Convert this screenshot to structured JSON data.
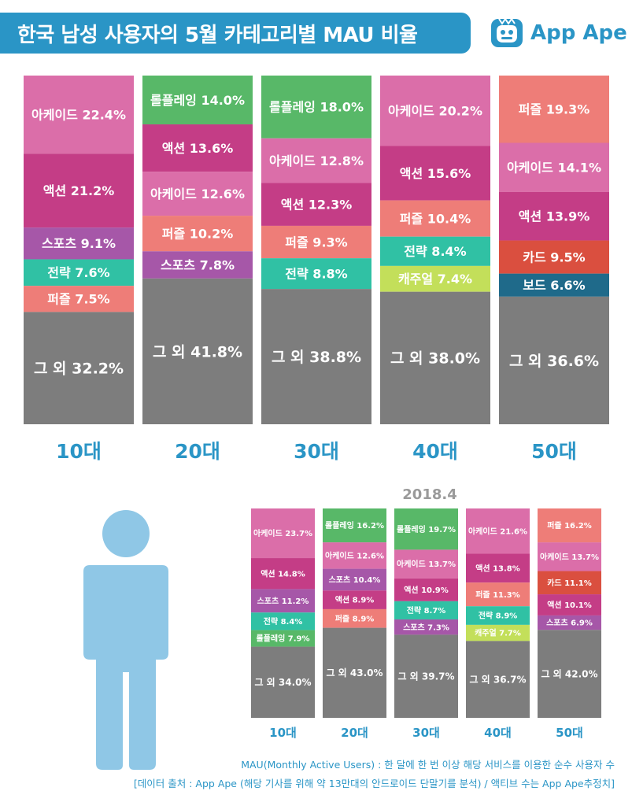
{
  "title": "한국 남성 사용자의 5월 카테고리별 MAU 비율",
  "logo_text": "App Ape",
  "colors": {
    "아케이드": "#db6ea9",
    "액션": "#c43d86",
    "스포츠": "#a657a8",
    "전략": "#30c1a4",
    "퍼즐": "#ee7d78",
    "롤플레잉": "#58b868",
    "캐주얼": "#c3df5a",
    "카드": "#da4f3f",
    "보드": "#1f6a8a",
    "그 외": "#7d7d7d",
    "accent": "#2a95c6",
    "figure": "#8fc7e6"
  },
  "chart_data": [
    {
      "type": "bar",
      "stacked": true,
      "normalized": true,
      "title": "",
      "categories": [
        "10대",
        "20대",
        "30대",
        "40대",
        "50대"
      ],
      "stacks": [
        [
          {
            "name": "아케이드",
            "value": 22.4
          },
          {
            "name": "액션",
            "value": 21.2
          },
          {
            "name": "스포츠",
            "value": 9.1
          },
          {
            "name": "전략",
            "value": 7.6
          },
          {
            "name": "퍼즐",
            "value": 7.5
          },
          {
            "name": "그 외",
            "value": 32.2
          }
        ],
        [
          {
            "name": "롤플레잉",
            "value": 14.0
          },
          {
            "name": "액션",
            "value": 13.6
          },
          {
            "name": "아케이드",
            "value": 12.6
          },
          {
            "name": "퍼즐",
            "value": 10.2
          },
          {
            "name": "스포츠",
            "value": 7.8
          },
          {
            "name": "그 외",
            "value": 41.8
          }
        ],
        [
          {
            "name": "롤플레잉",
            "value": 18.0
          },
          {
            "name": "아케이드",
            "value": 12.8
          },
          {
            "name": "액션",
            "value": 12.3
          },
          {
            "name": "퍼즐",
            "value": 9.3
          },
          {
            "name": "전략",
            "value": 8.8
          },
          {
            "name": "그 외",
            "value": 38.8
          }
        ],
        [
          {
            "name": "아케이드",
            "value": 20.2
          },
          {
            "name": "액션",
            "value": 15.6
          },
          {
            "name": "퍼즐",
            "value": 10.4
          },
          {
            "name": "전략",
            "value": 8.4
          },
          {
            "name": "캐주얼",
            "value": 7.4
          },
          {
            "name": "그 외",
            "value": 38.0
          }
        ],
        [
          {
            "name": "퍼즐",
            "value": 19.3
          },
          {
            "name": "아케이드",
            "value": 14.1
          },
          {
            "name": "액션",
            "value": 13.9
          },
          {
            "name": "카드",
            "value": 9.5
          },
          {
            "name": "보드",
            "value": 6.6
          },
          {
            "name": "그 외",
            "value": 36.6
          }
        ]
      ]
    },
    {
      "type": "bar",
      "stacked": true,
      "normalized": true,
      "title": "2018.4",
      "categories": [
        "10대",
        "20대",
        "30대",
        "40대",
        "50대"
      ],
      "stacks": [
        [
          {
            "name": "아케이드",
            "value": 23.7
          },
          {
            "name": "액션",
            "value": 14.8
          },
          {
            "name": "스포츠",
            "value": 11.2
          },
          {
            "name": "전략",
            "value": 8.4
          },
          {
            "name": "롤플레잉",
            "value": 7.9
          },
          {
            "name": "그 외",
            "value": 34.0
          }
        ],
        [
          {
            "name": "롤플레잉",
            "value": 16.2
          },
          {
            "name": "아케이드",
            "value": 12.6
          },
          {
            "name": "스포츠",
            "value": 10.4
          },
          {
            "name": "액션",
            "value": 8.9
          },
          {
            "name": "퍼즐",
            "value": 8.9
          },
          {
            "name": "그 외",
            "value": 43.0
          }
        ],
        [
          {
            "name": "롤플레잉",
            "value": 19.7
          },
          {
            "name": "아케이드",
            "value": 13.7
          },
          {
            "name": "액션",
            "value": 10.9
          },
          {
            "name": "전략",
            "value": 8.7
          },
          {
            "name": "스포츠",
            "value": 7.3
          },
          {
            "name": "그 외",
            "value": 39.7
          }
        ],
        [
          {
            "name": "아케이드",
            "value": 21.6
          },
          {
            "name": "액션",
            "value": 13.8
          },
          {
            "name": "퍼즐",
            "value": 11.3
          },
          {
            "name": "전략",
            "value": 8.9
          },
          {
            "name": "캐주얼",
            "value": 7.7
          },
          {
            "name": "그 외",
            "value": 36.7
          }
        ],
        [
          {
            "name": "퍼즐",
            "value": 16.2
          },
          {
            "name": "아케이드",
            "value": 13.7
          },
          {
            "name": "카드",
            "value": 11.1
          },
          {
            "name": "액션",
            "value": 10.1
          },
          {
            "name": "스포츠",
            "value": 6.9
          },
          {
            "name": "그 외",
            "value": 42.0
          }
        ]
      ]
    }
  ],
  "footnotes": [
    "MAU(Monthly Active Users) : 한 달에 한 번 이상 해당 서비스를 이용한 순수 사용자 수",
    "[데이터 출처 : App Ape (해당 기사를 위해 약 13만대의 안드로이드 단말기를 분석) / 액티브 수는 App Ape추정치]"
  ]
}
